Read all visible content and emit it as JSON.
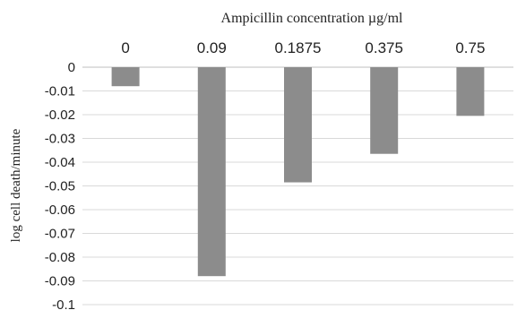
{
  "chart_data": {
    "type": "bar",
    "categories": [
      "0",
      "0.09",
      "0.1875",
      "0.375",
      "0.75"
    ],
    "values": [
      -0.008,
      -0.088,
      -0.0485,
      -0.0365,
      -0.0205
    ],
    "xlabel": "Ampicillin concentration µg/ml",
    "ylabel": "log cell death/minute",
    "ylim": [
      -0.1,
      0
    ],
    "yticks": [
      "0",
      "-0.01",
      "-0.02",
      "-0.03",
      "-0.04",
      "-0.05",
      "-0.06",
      "-0.07",
      "-0.08",
      "-0.09",
      "-0.1"
    ],
    "xaxis_position": "top",
    "grid": true,
    "bar_color": "#8c8c8c",
    "grid_color": "#d9d9d9"
  }
}
